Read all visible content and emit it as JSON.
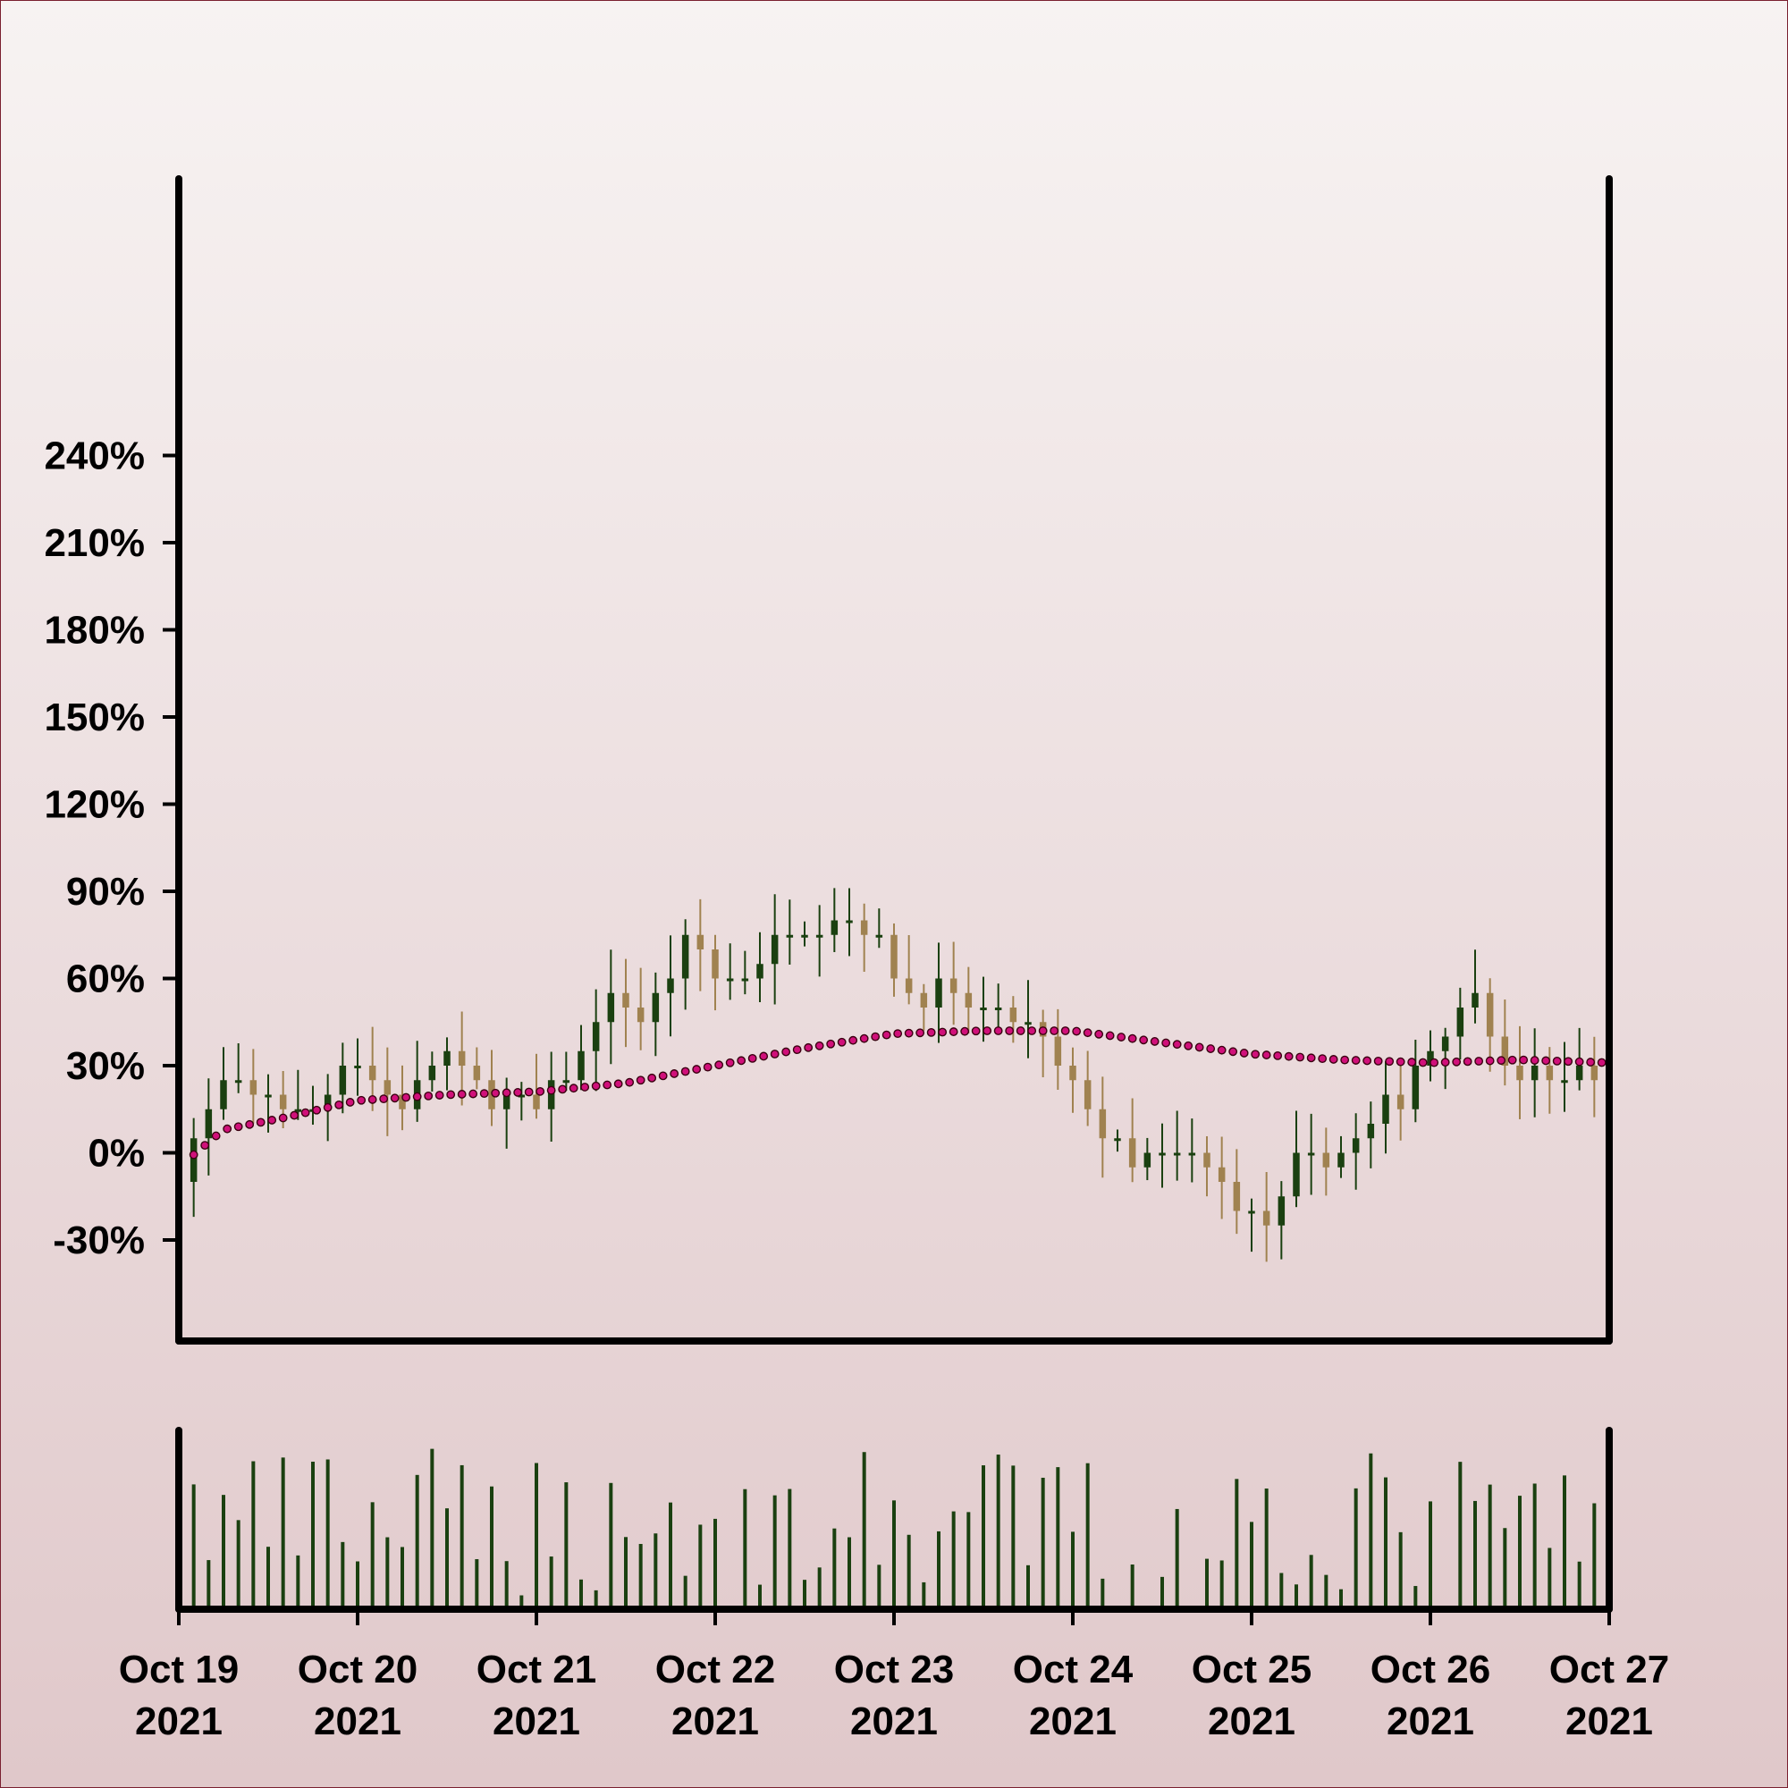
{
  "chart_data": [
    {
      "type": "candlestick",
      "title": "",
      "xlabel": "",
      "ylabel": "",
      "y_axis_format": "percent",
      "ylim": [
        -50,
        250
      ],
      "y_ticks": [
        "240%",
        "210%",
        "180%",
        "150%",
        "120%",
        "90%",
        "60%",
        "30%",
        "0%",
        "-30%"
      ],
      "y_tick_values": [
        240,
        210,
        180,
        150,
        120,
        90,
        60,
        30,
        0,
        -30
      ],
      "x_ticks": [
        {
          "date": "2021-10-19",
          "line1": "Oct 19",
          "line2": "2021"
        },
        {
          "date": "2021-10-20",
          "line1": "Oct 20",
          "line2": "2021"
        },
        {
          "date": "2021-10-21",
          "line1": "Oct 21",
          "line2": "2021"
        },
        {
          "date": "2021-10-22",
          "line1": "Oct 22",
          "line2": "2021"
        },
        {
          "date": "2021-10-23",
          "line1": "Oct 23",
          "line2": "2021"
        },
        {
          "date": "2021-10-24",
          "line1": "Oct 24",
          "line2": "2021"
        },
        {
          "date": "2021-10-25",
          "line1": "Oct 25",
          "line2": "2021"
        },
        {
          "date": "2021-10-26",
          "line1": "Oct 26",
          "line2": "2021"
        },
        {
          "date": "2021-10-27",
          "line1": "Oct 27",
          "line2": "2021"
        }
      ],
      "xlim": [
        "2021-10-19",
        "2021-10-27"
      ],
      "candle_interval": "2 hours",
      "close_path": [
        [
          "2021-10-19T00:00",
          -5
        ],
        [
          "2021-10-19T06:00",
          25
        ],
        [
          "2021-10-19T18:00",
          14
        ],
        [
          "2021-10-19T23:00",
          35
        ],
        [
          "2021-10-20T06:00",
          15
        ],
        [
          "2021-10-20T12:00",
          35
        ],
        [
          "2021-10-20T18:00",
          18
        ],
        [
          "2021-10-21T00:00",
          14
        ],
        [
          "2021-10-21T06:00",
          35
        ],
        [
          "2021-10-21T10:00",
          55
        ],
        [
          "2021-10-21T14:00",
          45
        ],
        [
          "2021-10-21T20:00",
          72
        ],
        [
          "2021-10-22T02:00",
          58
        ],
        [
          "2021-10-22T06:00",
          68
        ],
        [
          "2021-10-22T12:00",
          80
        ],
        [
          "2021-10-22T20:00",
          80
        ],
        [
          "2021-10-23T02:00",
          55
        ],
        [
          "2021-10-23T06:00",
          55
        ],
        [
          "2021-10-23T12:00",
          50
        ],
        [
          "2021-10-23T18:00",
          45
        ],
        [
          "2021-10-24T02:00",
          15
        ],
        [
          "2021-10-24T08:00",
          -5
        ],
        [
          "2021-10-24T14:00",
          0
        ],
        [
          "2021-10-24T20:00",
          -10
        ],
        [
          "2021-10-25T02:00",
          -25
        ],
        [
          "2021-10-25T06:00",
          -5
        ],
        [
          "2021-10-25T14:00",
          5
        ],
        [
          "2021-10-25T20:00",
          20
        ],
        [
          "2021-10-26T00:00",
          38
        ],
        [
          "2021-10-26T06:00",
          56
        ],
        [
          "2021-10-26T10:00",
          30
        ],
        [
          "2021-10-26T18:00",
          25
        ],
        [
          "2021-10-27T00:00",
          30
        ]
      ],
      "moving_average": [
        [
          "2021-10-19T00:00",
          -5
        ],
        [
          "2021-10-19T06:00",
          8
        ],
        [
          "2021-10-19T14:00",
          12
        ],
        [
          "2021-10-20T00:00",
          18
        ],
        [
          "2021-10-20T12:00",
          20
        ],
        [
          "2021-10-21T00:00",
          21
        ],
        [
          "2021-10-21T12:00",
          24
        ],
        [
          "2021-10-22T00:00",
          30
        ],
        [
          "2021-10-22T12:00",
          36
        ],
        [
          "2021-10-23T00:00",
          41
        ],
        [
          "2021-10-23T12:00",
          42
        ],
        [
          "2021-10-24T00:00",
          42
        ],
        [
          "2021-10-24T12:00",
          38
        ],
        [
          "2021-10-25T00:00",
          34
        ],
        [
          "2021-10-25T12:00",
          32
        ],
        [
          "2021-10-26T00:00",
          31
        ],
        [
          "2021-10-26T12:00",
          32
        ],
        [
          "2021-10-27T00:00",
          31
        ]
      ],
      "volume_panel": true,
      "colors": {
        "up": "#1a4010",
        "down": "#a08250",
        "moving_average_fill": "#d0107a",
        "moving_average_stroke": "#3a0010",
        "volume": "#1a4010",
        "axes": "#000000"
      },
      "grid": false,
      "legend": "none"
    }
  ]
}
